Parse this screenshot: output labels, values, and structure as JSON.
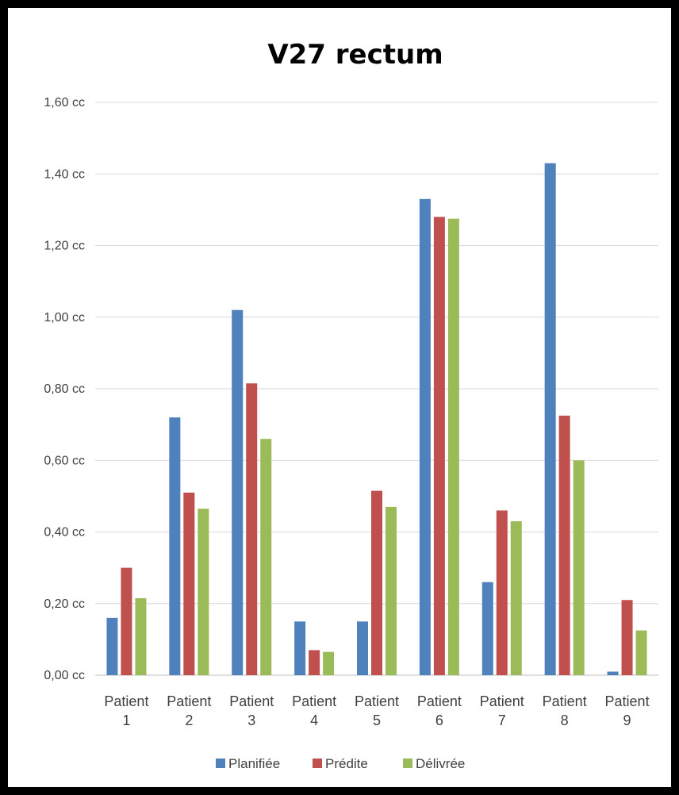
{
  "chart_data": {
    "type": "bar",
    "title": "V27 rectum",
    "categories": [
      [
        "Patient",
        "1"
      ],
      [
        "Patient",
        "2"
      ],
      [
        "Patient",
        "3"
      ],
      [
        "Patient",
        "4"
      ],
      [
        "Patient",
        "5"
      ],
      [
        "Patient",
        "6"
      ],
      [
        "Patient",
        "7"
      ],
      [
        "Patient",
        "8"
      ],
      [
        "Patient",
        "9"
      ]
    ],
    "series": [
      {
        "name": "Planifiée",
        "color": "#4F81BD",
        "values": [
          0.16,
          0.72,
          1.02,
          0.15,
          0.15,
          1.33,
          0.26,
          1.43,
          0.01
        ]
      },
      {
        "name": "Prédite",
        "color": "#C0504D",
        "values": [
          0.3,
          0.51,
          0.815,
          0.07,
          0.515,
          1.28,
          0.46,
          0.725,
          0.21
        ]
      },
      {
        "name": "Délivrée",
        "color": "#9BBB59",
        "values": [
          0.215,
          0.465,
          0.66,
          0.065,
          0.47,
          1.275,
          0.43,
          0.6,
          0.125
        ]
      }
    ],
    "yticks": [
      "0,00 cc",
      "0,20 cc",
      "0,40 cc",
      "0,60 cc",
      "0,80 cc",
      "1,00 cc",
      "1,20 cc",
      "1,40 cc",
      "1,60 cc"
    ],
    "ylim": [
      0,
      1.6
    ],
    "ystep": 0.2,
    "xlabel": "",
    "ylabel": "",
    "grid": true,
    "legend_position": "bottom"
  }
}
